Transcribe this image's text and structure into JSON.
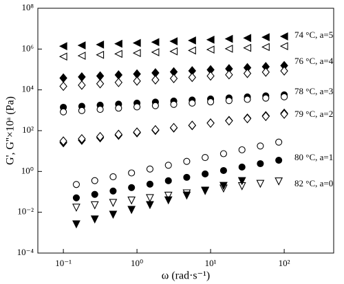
{
  "chart_data": {
    "type": "scatter",
    "xlabel": "ω (rad·s⁻¹)",
    "ylabel": "G', G''×10ᵃ (Pa)",
    "xscale": "log",
    "yscale": "log",
    "xlim": [
      0.045,
      470
    ],
    "ylim": [
      0.0001,
      100000000
    ],
    "xticks": [
      {
        "value": 0.1,
        "label": "10⁻¹"
      },
      {
        "value": 1,
        "label": "10⁰"
      },
      {
        "value": 10,
        "label": "10¹"
      },
      {
        "value": 100,
        "label": "10²"
      }
    ],
    "yticks": [
      {
        "value": 0.0001,
        "label": "10⁻⁴"
      },
      {
        "value": 0.01,
        "label": "10⁻²"
      },
      {
        "value": 1,
        "label": "10⁰"
      },
      {
        "value": 100,
        "label": "10²"
      },
      {
        "value": 10000,
        "label": "10⁴"
      },
      {
        "value": 1000000,
        "label": "10⁶"
      },
      {
        "value": 100000000,
        "label": "10⁸"
      }
    ],
    "annotations": [
      "74 °C, a=5",
      "76 °C, a=4",
      "78 °C, a=3",
      "79 °C, a=2",
      "80 °C, a=1",
      "82 °C, a=0"
    ],
    "series": [
      {
        "marker": "triangle-left",
        "filled": true,
        "color": "#000000",
        "x": [
          0.1,
          0.178,
          0.316,
          0.562,
          1,
          1.78,
          3.16,
          5.62,
          10,
          17.8,
          31.6,
          56.2,
          100
        ],
        "values": [
          1380000,
          1510000,
          1650000,
          1820000,
          1990000,
          2190000,
          2400000,
          2630000,
          2880000,
          3160000,
          3470000,
          3800000,
          4170000
        ]
      },
      {
        "marker": "triangle-left",
        "filled": false,
        "color": "#000000",
        "x": [
          0.1,
          0.178,
          0.316,
          0.562,
          1,
          1.78,
          3.16,
          5.62,
          10,
          17.8,
          31.6,
          56.2,
          100
        ],
        "values": [
          430000,
          470000,
          520000,
          580000,
          640000,
          700000,
          770000,
          850000,
          940000,
          1040000,
          1140000,
          1260000,
          1390000
        ]
      },
      {
        "marker": "diamond",
        "filled": true,
        "color": "#000000",
        "x": [
          0.1,
          0.178,
          0.316,
          0.562,
          1,
          1.78,
          3.16,
          5.62,
          10,
          17.8,
          31.6,
          56.2,
          100
        ],
        "values": [
          38000,
          43000,
          48000,
          54000,
          60000,
          68000,
          76000,
          86000,
          96000,
          108000,
          122000,
          137000,
          154000
        ]
      },
      {
        "marker": "diamond",
        "filled": false,
        "color": "#000000",
        "x": [
          0.1,
          0.178,
          0.316,
          0.562,
          1,
          1.78,
          3.16,
          5.62,
          10,
          17.8,
          31.6,
          56.2,
          100
        ],
        "values": [
          15000,
          17000,
          20000,
          23000,
          27000,
          31000,
          36000,
          41000,
          48000,
          55000,
          64000,
          74000,
          85000
        ]
      },
      {
        "marker": "circle",
        "filled": true,
        "color": "#000000",
        "x": [
          0.1,
          0.178,
          0.316,
          0.562,
          1,
          1.78,
          3.16,
          5.62,
          10,
          17.8,
          31.6,
          56.2,
          100
        ],
        "values": [
          1400,
          1570,
          1770,
          1990,
          2240,
          2510,
          2820,
          3170,
          3570,
          4010,
          4510,
          5070,
          5700
        ]
      },
      {
        "marker": "circle",
        "filled": false,
        "color": "#000000",
        "x": [
          0.1,
          0.178,
          0.316,
          0.562,
          1,
          1.78,
          3.16,
          5.62,
          10,
          17.8,
          31.6,
          56.2,
          100
        ],
        "values": [
          830,
          960,
          1100,
          1270,
          1460,
          1680,
          1940,
          2240,
          2580,
          2970,
          3420,
          3940,
          4540
        ]
      },
      {
        "marker": "diamond",
        "filled": true,
        "color": "#000000",
        "x": [
          0.1,
          0.178,
          0.316,
          0.562,
          1,
          1.78,
          3.16,
          5.62,
          10,
          17.8,
          31.6,
          56.2,
          100
        ],
        "values": [
          26,
          34,
          45,
          60,
          79,
          104,
          136,
          179,
          236,
          311,
          409,
          538,
          708
        ]
      },
      {
        "marker": "diamond",
        "filled": false,
        "color": "#000000",
        "x": [
          0.1,
          0.178,
          0.316,
          0.562,
          1,
          1.78,
          3.16,
          5.62,
          10,
          17.8,
          31.6,
          56.2,
          100
        ],
        "values": [
          31,
          40,
          51,
          66,
          85,
          110,
          141,
          182,
          234,
          302,
          389,
          501,
          645
        ]
      },
      {
        "marker": "circle",
        "filled": false,
        "color": "#000000",
        "x": [
          0.15,
          0.267,
          0.474,
          0.843,
          1.5,
          2.67,
          4.74,
          8.43,
          15,
          26.7,
          47.4,
          84.3
        ],
        "values": [
          0.23,
          0.355,
          0.548,
          0.846,
          1.31,
          2.02,
          3.11,
          4.81,
          7.42,
          11.5,
          17.7,
          27.3
        ]
      },
      {
        "marker": "circle",
        "filled": true,
        "color": "#000000",
        "x": [
          0.15,
          0.267,
          0.474,
          0.843,
          1.5,
          2.67,
          4.74,
          8.43,
          15,
          26.7,
          47.4,
          84.3
        ],
        "values": [
          0.051,
          0.075,
          0.11,
          0.162,
          0.238,
          0.35,
          0.515,
          0.757,
          1.11,
          1.64,
          2.41,
          3.54
        ]
      },
      {
        "marker": "triangle-down",
        "filled": false,
        "color": "#000000",
        "x": [
          0.15,
          0.267,
          0.474,
          0.843,
          1.5,
          2.67,
          4.74,
          8.43,
          15,
          26.7,
          47.4,
          84.3
        ],
        "values": [
          0.017,
          0.0223,
          0.0291,
          0.0381,
          0.0499,
          0.0654,
          0.0856,
          0.112,
          0.147,
          0.192,
          0.251,
          0.329
        ]
      },
      {
        "marker": "triangle-down",
        "filled": true,
        "color": "#000000",
        "x": [
          0.15,
          0.267,
          0.474,
          0.843,
          1.5,
          2.67,
          4.74,
          8.43,
          15,
          26.7
        ],
        "values": [
          0.0026,
          0.0045,
          0.0077,
          0.0132,
          0.0228,
          0.039,
          0.067,
          0.116,
          0.199,
          0.342
        ]
      }
    ]
  }
}
